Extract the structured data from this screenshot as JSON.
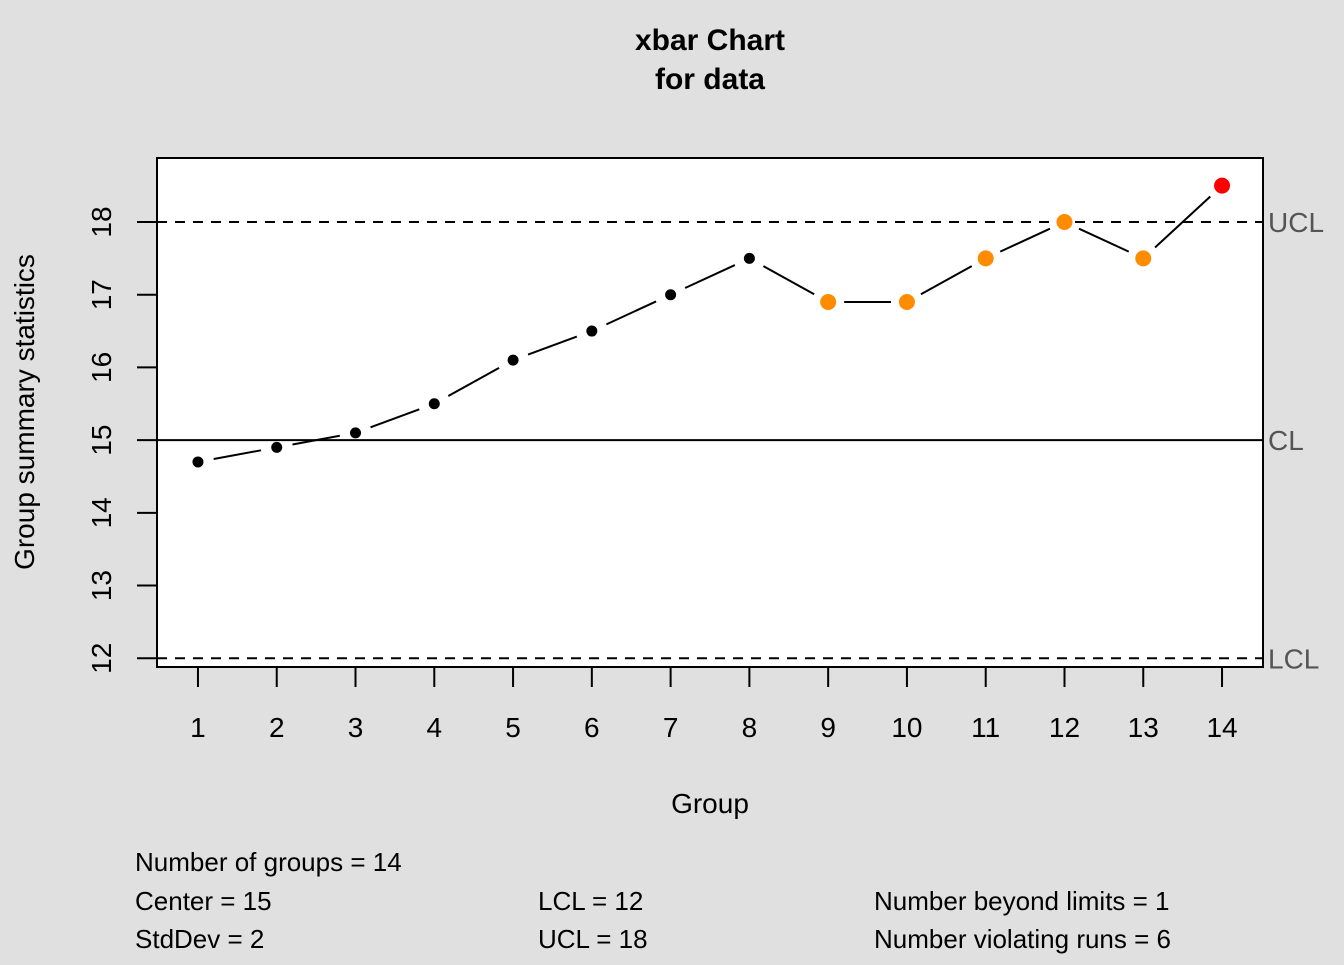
{
  "chart_data": {
    "type": "line",
    "title": "xbar Chart",
    "subtitle": "for data",
    "xlabel": "Group",
    "ylabel": "Group summary statistics",
    "x": [
      1,
      2,
      3,
      4,
      5,
      6,
      7,
      8,
      9,
      10,
      11,
      12,
      13,
      14
    ],
    "x_tick_labels": [
      "1",
      "2",
      "3",
      "4",
      "5",
      "6",
      "7",
      "8",
      "9",
      "10",
      "11",
      "12",
      "13",
      "14"
    ],
    "values": [
      14.7,
      14.9,
      15.1,
      15.5,
      16.1,
      16.5,
      17.0,
      17.5,
      16.9,
      16.9,
      17.5,
      18.0,
      17.5,
      18.5
    ],
    "point_status": [
      "normal",
      "normal",
      "normal",
      "normal",
      "normal",
      "normal",
      "normal",
      "normal",
      "violating",
      "violating",
      "violating",
      "violating",
      "violating",
      "beyond"
    ],
    "y_ticks": [
      12,
      13,
      14,
      15,
      16,
      17,
      18
    ],
    "ylim": [
      11.88,
      18.88
    ],
    "xlim": [
      0.48,
      14.52
    ],
    "grid": false,
    "control_limits": {
      "CL": {
        "label": "CL",
        "value": 15,
        "style": "solid"
      },
      "UCL": {
        "label": "UCL",
        "value": 18,
        "style": "dashed"
      },
      "LCL": {
        "label": "LCL",
        "value": 12,
        "style": "dashed"
      }
    },
    "colors": {
      "background": "#e0e0e0",
      "plot_area": "#ffffff",
      "normal_point": "#000000",
      "violating_point": "#ff8c00",
      "beyond_point": "#ff0000",
      "limit_label": "#555555"
    }
  },
  "stats": {
    "groups": "Number of groups = 14",
    "center": "Center = 15",
    "stddev": "StdDev = 2",
    "lcl": "LCL = 12",
    "ucl": "UCL = 18",
    "beyond": "Number beyond limits = 1",
    "violating": "Number violating runs = 6"
  }
}
